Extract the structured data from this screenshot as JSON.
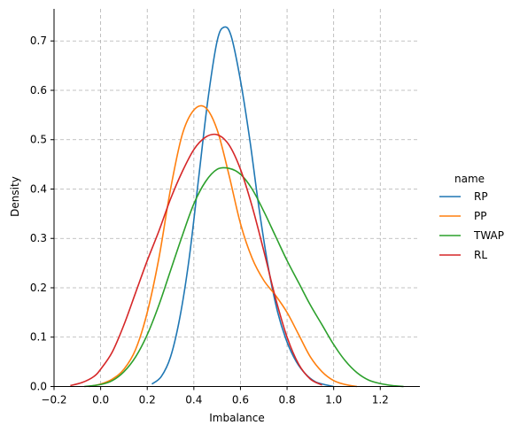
{
  "chart_data": {
    "type": "line",
    "title": "",
    "xlabel": "Imbalance",
    "ylabel": "Density",
    "xlim": [
      -0.2,
      1.37
    ],
    "ylim": [
      0,
      0.765
    ],
    "grid": true,
    "xticks": [
      -0.2,
      0.0,
      0.2,
      0.4,
      0.6,
      0.8,
      1.0,
      1.2
    ],
    "xtick_labels": [
      "−0.2",
      "0.0",
      "0.2",
      "0.4",
      "0.6",
      "0.8",
      "1.0",
      "1.2"
    ],
    "yticks": [
      0.0,
      0.1,
      0.2,
      0.3,
      0.4,
      0.5,
      0.6,
      0.7
    ],
    "ytick_labels": [
      "0.0",
      "0.1",
      "0.2",
      "0.3",
      "0.4",
      "0.5",
      "0.6",
      "0.7"
    ],
    "legend": {
      "title": "name",
      "position": "right"
    },
    "series": [
      {
        "name": "RP",
        "color": "#1f77b4",
        "x": [
          0.22,
          0.26,
          0.3,
          0.34,
          0.38,
          0.42,
          0.46,
          0.5,
          0.53,
          0.56,
          0.6,
          0.64,
          0.68,
          0.72,
          0.76,
          0.8,
          0.84,
          0.88,
          0.92,
          0.96,
          1.0
        ],
        "y": [
          0.005,
          0.02,
          0.06,
          0.14,
          0.26,
          0.42,
          0.58,
          0.7,
          0.728,
          0.71,
          0.62,
          0.5,
          0.36,
          0.24,
          0.15,
          0.09,
          0.05,
          0.025,
          0.01,
          0.004,
          0.0
        ]
      },
      {
        "name": "PP",
        "color": "#ff7f0e",
        "x": [
          -0.05,
          0.0,
          0.05,
          0.1,
          0.15,
          0.2,
          0.25,
          0.3,
          0.35,
          0.4,
          0.45,
          0.5,
          0.55,
          0.6,
          0.65,
          0.7,
          0.75,
          0.8,
          0.85,
          0.9,
          0.95,
          1.0,
          1.05,
          1.1
        ],
        "y": [
          0.0,
          0.005,
          0.015,
          0.035,
          0.075,
          0.15,
          0.26,
          0.4,
          0.51,
          0.56,
          0.565,
          0.52,
          0.43,
          0.33,
          0.26,
          0.215,
          0.185,
          0.15,
          0.105,
          0.06,
          0.03,
          0.012,
          0.004,
          0.0
        ]
      },
      {
        "name": "TWAP",
        "color": "#2ca02c",
        "x": [
          -0.07,
          0.0,
          0.05,
          0.1,
          0.15,
          0.2,
          0.25,
          0.3,
          0.35,
          0.4,
          0.45,
          0.5,
          0.55,
          0.6,
          0.65,
          0.7,
          0.75,
          0.8,
          0.85,
          0.9,
          0.95,
          1.0,
          1.05,
          1.1,
          1.15,
          1.2,
          1.25,
          1.3
        ],
        "y": [
          0.0,
          0.004,
          0.012,
          0.03,
          0.06,
          0.105,
          0.165,
          0.235,
          0.305,
          0.37,
          0.415,
          0.44,
          0.442,
          0.43,
          0.4,
          0.355,
          0.305,
          0.255,
          0.21,
          0.165,
          0.125,
          0.085,
          0.052,
          0.028,
          0.013,
          0.006,
          0.002,
          0.0
        ]
      },
      {
        "name": "RL",
        "color": "#d62728",
        "x": [
          -0.13,
          -0.08,
          -0.03,
          0.0,
          0.05,
          0.1,
          0.15,
          0.2,
          0.25,
          0.3,
          0.35,
          0.4,
          0.45,
          0.5,
          0.55,
          0.6,
          0.65,
          0.7,
          0.75,
          0.8,
          0.85,
          0.9,
          0.95
        ],
        "y": [
          0.002,
          0.008,
          0.02,
          0.035,
          0.07,
          0.125,
          0.19,
          0.255,
          0.315,
          0.38,
          0.435,
          0.48,
          0.505,
          0.51,
          0.49,
          0.44,
          0.365,
          0.275,
          0.18,
          0.1,
          0.045,
          0.015,
          0.003
        ]
      }
    ]
  }
}
